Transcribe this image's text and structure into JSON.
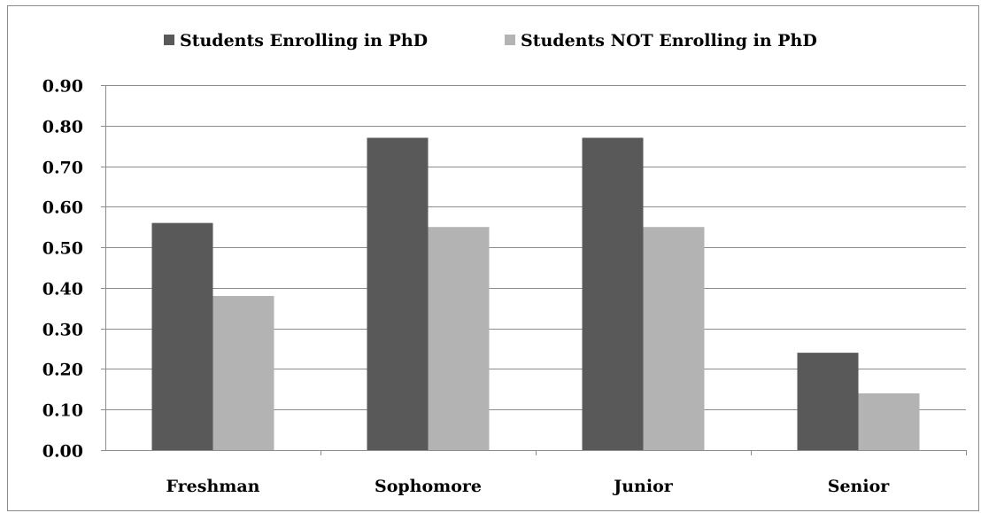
{
  "chart_data": {
    "type": "bar",
    "title": "",
    "xlabel": "",
    "ylabel": "",
    "categories": [
      "Freshman",
      "Sophomore",
      "Junior",
      "Senior"
    ],
    "series": [
      {
        "name": "Students Enrolling in PhD",
        "color": "#595959",
        "values": [
          0.56,
          0.77,
          0.77,
          0.24
        ]
      },
      {
        "name": "Students NOT Enrolling in PhD",
        "color": "#b3b3b3",
        "values": [
          0.38,
          0.55,
          0.55,
          0.14
        ]
      }
    ],
    "ylim": [
      0,
      0.9
    ],
    "yticks": [
      "0.00",
      "0.10",
      "0.20",
      "0.30",
      "0.40",
      "0.50",
      "0.60",
      "0.70",
      "0.80",
      "0.90"
    ],
    "grid": true,
    "legend_position": "top"
  }
}
